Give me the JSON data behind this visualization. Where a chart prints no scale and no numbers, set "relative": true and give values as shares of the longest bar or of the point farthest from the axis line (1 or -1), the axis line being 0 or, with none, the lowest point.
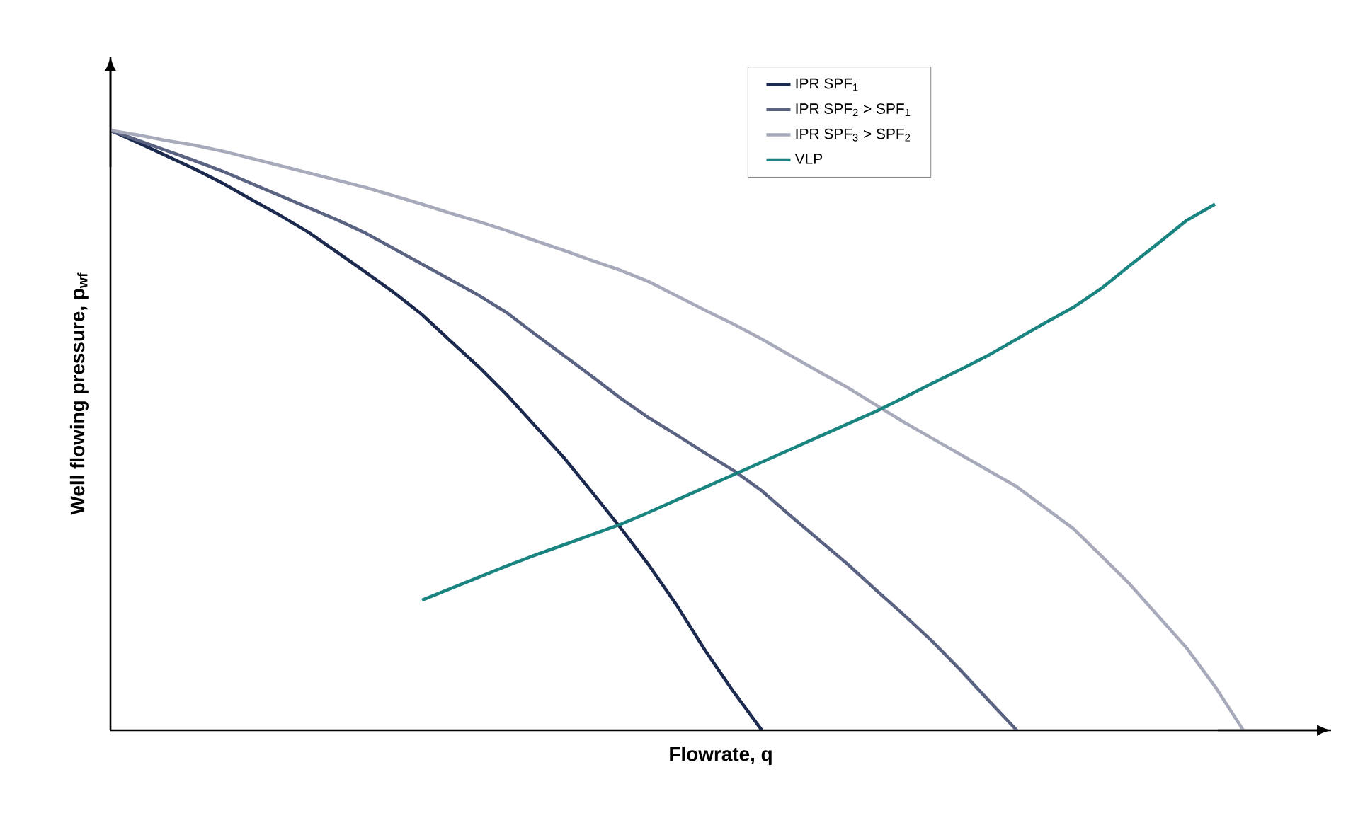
{
  "chart_data": {
    "type": "line",
    "relative": true,
    "xlabel": "Flowrate, q",
    "ylabel": "Well flowing pressure, p$_{wf}$",
    "legend": "top right",
    "marker": "none",
    "line_style": "solid",
    "categories": [
      null,
      null,
      null,
      null,
      null,
      null,
      null,
      null,
      null,
      null,
      null,
      null,
      null,
      null,
      null,
      null,
      null,
      null,
      null,
      null,
      null,
      null,
      null,
      null,
      null,
      null,
      null,
      null,
      null,
      null,
      null,
      null,
      null,
      null,
      null,
      null,
      null,
      null,
      null,
      null,
      null
    ],
    "series": [
      {
        "name": "IPR SPF$_{1}$",
        "color": "#1b2a4e",
        "values": [
          1,
          0.979,
          0.957,
          0.935,
          0.911,
          0.884,
          0.858,
          0.83,
          0.797,
          0.764,
          0.73,
          0.693,
          0.649,
          0.606,
          0.559,
          0.507,
          0.455,
          0.397,
          0.338,
          0.276,
          0.208,
          0.133,
          0.064,
          0,
          null,
          null,
          null,
          null,
          null,
          null,
          null,
          null,
          null,
          null,
          null,
          null,
          null,
          null,
          null,
          null,
          null
        ]
      },
      {
        "name": "IPR SPF$_{2}$ > SPF$_{1}$",
        "color": "#5b6383",
        "values": [
          1,
          0.983,
          0.966,
          0.949,
          0.931,
          0.911,
          0.891,
          0.871,
          0.851,
          0.829,
          0.803,
          0.777,
          0.751,
          0.725,
          0.696,
          0.66,
          0.625,
          0.59,
          0.554,
          0.521,
          0.492,
          0.462,
          0.433,
          0.399,
          0.358,
          0.318,
          0.278,
          0.235,
          0.193,
          0.149,
          0.101,
          0.05,
          0,
          null,
          null,
          null,
          null,
          null,
          null,
          null,
          null
        ]
      },
      {
        "name": "IPR SPF$_{3}$ > SPF$_{2}$",
        "color": "#a7aabb",
        "values": [
          1,
          0.992,
          0.983,
          0.975,
          0.965,
          0.953,
          0.941,
          0.929,
          0.917,
          0.905,
          0.891,
          0.877,
          0.862,
          0.848,
          0.833,
          0.816,
          0.8,
          0.783,
          0.767,
          0.748,
          0.724,
          0.7,
          0.677,
          0.652,
          0.625,
          0.598,
          0.572,
          0.543,
          0.514,
          0.487,
          0.46,
          0.433,
          0.406,
          0.371,
          0.336,
          0.29,
          0.243,
          0.19,
          0.137,
          0.073,
          0
        ]
      },
      {
        "name": "VLP",
        "color": "#1a8480",
        "values": [
          null,
          null,
          null,
          null,
          null,
          null,
          null,
          null,
          null,
          null,
          null,
          0.217,
          0.236,
          0.255,
          0.274,
          0.292,
          0.309,
          0.326,
          0.343,
          0.363,
          0.384,
          0.405,
          0.426,
          0.447,
          0.468,
          0.489,
          0.51,
          0.531,
          0.554,
          0.578,
          0.601,
          0.625,
          0.652,
          0.679,
          0.705,
          0.737,
          0.775,
          0.812,
          0.85,
          0.877,
          null
        ]
      }
    ]
  }
}
